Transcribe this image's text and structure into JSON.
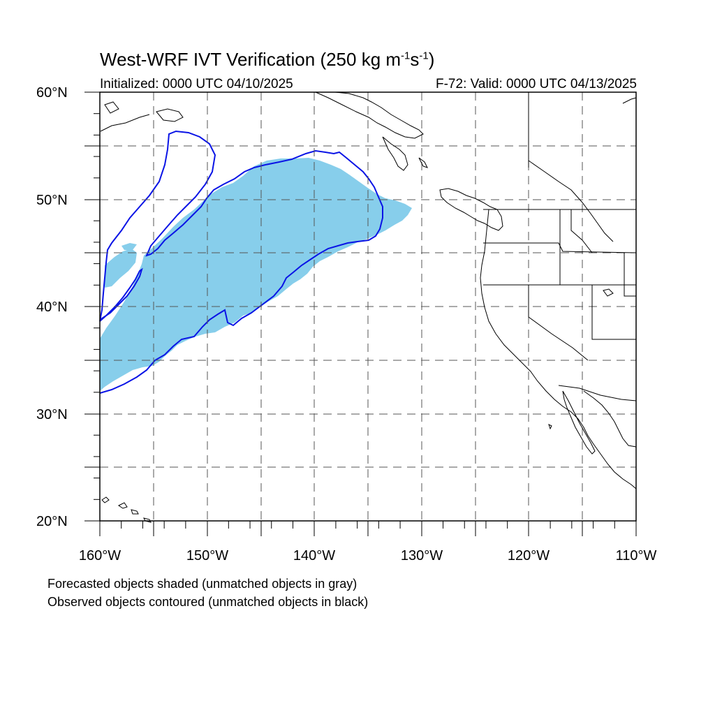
{
  "title": {
    "main": "West-WRF IVT Verification (250 kg m",
    "exp1": "-1",
    "mid": "s",
    "exp2": "-1",
    "end": ")"
  },
  "subtitle_left": "Initialized: 0000 UTC 04/10/2025",
  "subtitle_right": "F-72: Valid: 0000 UTC 04/13/2025",
  "lat_labels": [
    "60°N",
    "50°N",
    "40°N",
    "30°N",
    "20°N"
  ],
  "lon_labels": [
    "160°W",
    "150°W",
    "140°W",
    "130°W",
    "120°W",
    "110°W"
  ],
  "footnotes": [
    "Forecasted objects shaded (unmatched objects in gray)",
    "Observed objects contoured (unmatched objects in black)"
  ],
  "colors": {
    "forecast_fill": "#87ceeb",
    "observed_contour": "#0a14e6",
    "coastline": "#000000",
    "grid": "#555555"
  }
}
